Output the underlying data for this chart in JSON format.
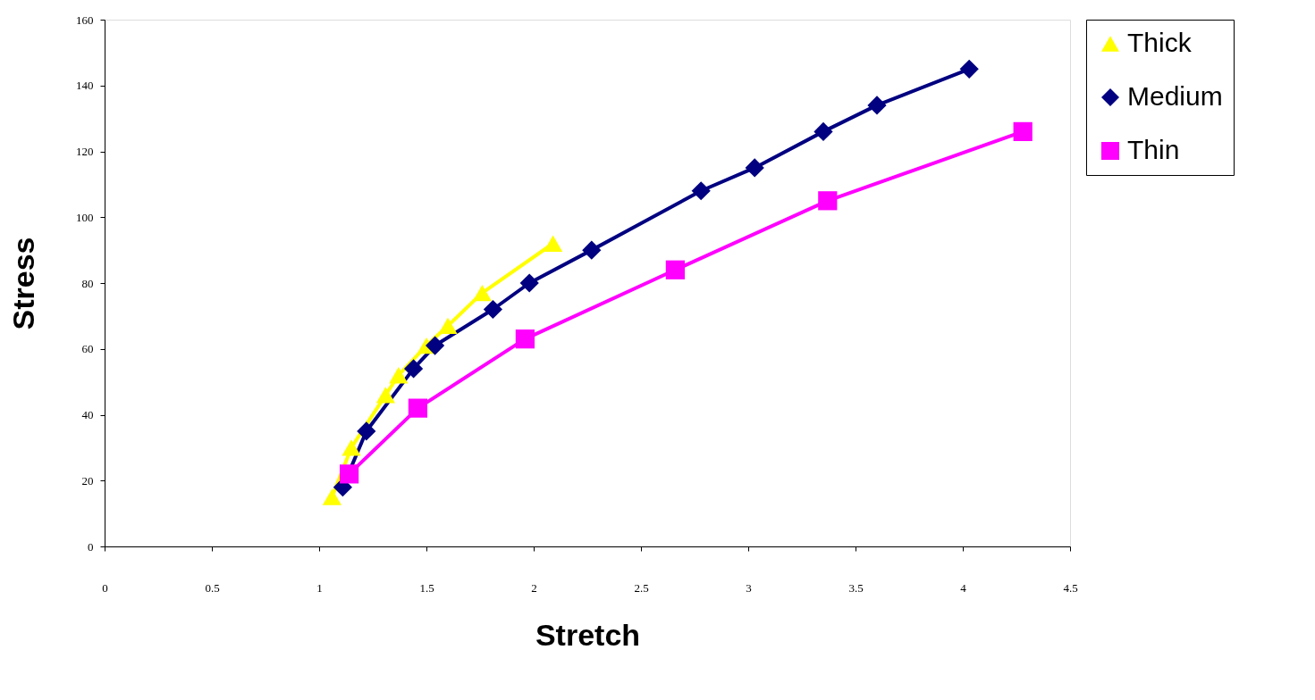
{
  "chart_data": {
    "type": "line",
    "xlabel": "Stretch",
    "ylabel": "Stress",
    "xlim": [
      0,
      4.5
    ],
    "xticks": [
      0,
      0.5,
      1,
      1.5,
      2,
      2.5,
      3,
      3.5,
      4,
      4.5
    ],
    "ylim": [
      0,
      160
    ],
    "yticks": [
      0,
      20,
      40,
      60,
      80,
      100,
      120,
      140,
      160
    ],
    "grid": false,
    "legend": "right",
    "line_style": "solid",
    "series": [
      {
        "name": "Thick",
        "color": "#ffff00",
        "marker": "triangle",
        "x": [
          1.06,
          1.15,
          1.31,
          1.37,
          1.5,
          1.6,
          1.76,
          2.09
        ],
        "values": [
          15,
          30,
          46,
          52,
          61,
          67,
          77,
          92
        ]
      },
      {
        "name": "Medium",
        "color": "#000080",
        "marker": "diamond",
        "x": [
          1.11,
          1.22,
          1.44,
          1.54,
          1.81,
          1.98,
          2.27,
          2.78,
          3.03,
          3.35,
          3.6,
          4.03
        ],
        "values": [
          18,
          35,
          54,
          61,
          72,
          80,
          90,
          108,
          115,
          126,
          134,
          145
        ]
      },
      {
        "name": "Thin",
        "color": "#ff00ff",
        "marker": "square",
        "x": [
          1.14,
          1.46,
          1.96,
          2.66,
          3.37,
          4.28
        ],
        "values": [
          22,
          42,
          63,
          84,
          105,
          126
        ]
      }
    ]
  }
}
